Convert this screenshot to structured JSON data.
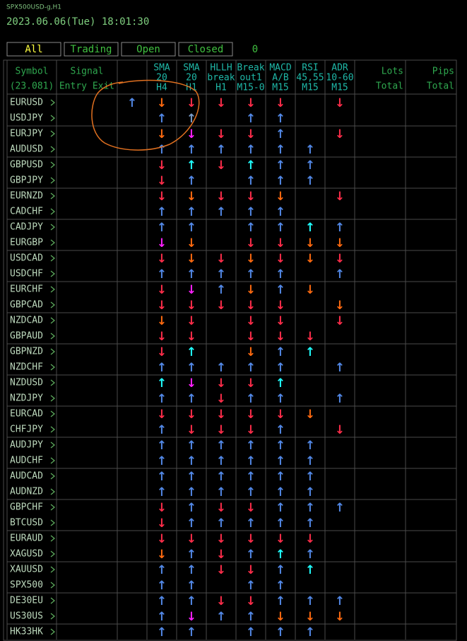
{
  "header": {
    "chart_name": "SPX500USD-g,H1",
    "datetime": "2023.06.06(Tue) 18:01:30"
  },
  "tabs": [
    "All",
    "Trading",
    "Open",
    "Closed"
  ],
  "count": 0,
  "columns": [
    [
      "Symbol",
      "(23.081)"
    ],
    [
      "Signal",
      "Entry Exit"
    ],
    [
      "SMA",
      "20",
      "H4"
    ],
    [
      "SMA",
      "20",
      "H1"
    ],
    [
      "HLLH",
      "break",
      "H1"
    ],
    [
      "Break",
      "out1",
      "M15-0"
    ],
    [
      "MACD",
      "A/B",
      "M15"
    ],
    [
      "RSI",
      "45,55",
      "M15"
    ],
    [
      "ADR",
      "10-60",
      "M15"
    ],
    [
      "Lots",
      "Total"
    ],
    [
      "Pips",
      "Total"
    ]
  ],
  "rows": [
    {
      "symbol": "EURUSD",
      "signals": [
        [
          "↑",
          "#5288e6"
        ],
        [
          "↓",
          "#ff6a10"
        ],
        [
          "↓",
          "#ff2d4a"
        ],
        [
          "↓",
          "#ff2d4a"
        ],
        [
          "↓",
          "#ff2d4a"
        ],
        [
          "↓",
          "#ff2d4a"
        ],
        null,
        [
          "↓",
          "#ff2d4a"
        ]
      ]
    },
    {
      "symbol": "USDJPY",
      "signals": [
        null,
        [
          "↑",
          "#5288e6"
        ],
        [
          "↑",
          "#7a9cc8"
        ],
        null,
        [
          "↑",
          "#5288e6"
        ],
        [
          "↑",
          "#5288e6"
        ],
        null,
        null
      ]
    },
    {
      "symbol": "EURJPY",
      "signals": [
        null,
        [
          "↓",
          "#ff6a10"
        ],
        [
          "↓",
          "#ff20ff"
        ],
        [
          "↓",
          "#ff2d4a"
        ],
        [
          "↓",
          "#ff2d4a"
        ],
        [
          "↑",
          "#5288e6"
        ],
        null,
        [
          "↓",
          "#ff2d4a"
        ]
      ]
    },
    {
      "symbol": "AUDUSD",
      "signals": [
        null,
        [
          "↑",
          "#5288e6"
        ],
        [
          "↑",
          "#5288e6"
        ],
        [
          "↑",
          "#5288e6"
        ],
        [
          "↑",
          "#5288e6"
        ],
        [
          "↑",
          "#5288e6"
        ],
        [
          "↑",
          "#5288e6"
        ],
        null
      ]
    },
    {
      "symbol": "GBPUSD",
      "signals": [
        null,
        [
          "↓",
          "#ff2d4a"
        ],
        [
          "↑",
          "#20ffff"
        ],
        [
          "↓",
          "#ff2d4a"
        ],
        [
          "↑",
          "#20ffff"
        ],
        [
          "↑",
          "#5288e6"
        ],
        [
          "↑",
          "#5288e6"
        ],
        null
      ]
    },
    {
      "symbol": "GBPJPY",
      "signals": [
        null,
        [
          "↓",
          "#ff2d4a"
        ],
        [
          "↑",
          "#5288e6"
        ],
        null,
        [
          "↑",
          "#5288e6"
        ],
        [
          "↑",
          "#5288e6"
        ],
        [
          "↑",
          "#5288e6"
        ],
        null
      ]
    },
    {
      "symbol": "EURNZD",
      "signals": [
        null,
        [
          "↓",
          "#ff2d4a"
        ],
        [
          "↓",
          "#ff6a10"
        ],
        [
          "↓",
          "#ff2d4a"
        ],
        [
          "↓",
          "#ff2d4a"
        ],
        [
          "↓",
          "#ff6a10"
        ],
        null,
        [
          "↓",
          "#ff2d4a"
        ]
      ]
    },
    {
      "symbol": "CADCHF",
      "signals": [
        null,
        [
          "↑",
          "#5288e6"
        ],
        [
          "↑",
          "#5288e6"
        ],
        [
          "↑",
          "#5288e6"
        ],
        [
          "↑",
          "#5288e6"
        ],
        [
          "↑",
          "#5288e6"
        ],
        null,
        null
      ]
    },
    {
      "symbol": "CADJPY",
      "signals": [
        null,
        [
          "↑",
          "#5288e6"
        ],
        [
          "↑",
          "#5288e6"
        ],
        null,
        [
          "↑",
          "#5288e6"
        ],
        [
          "↑",
          "#5288e6"
        ],
        [
          "↑",
          "#20ffff"
        ],
        [
          "↑",
          "#5288e6"
        ]
      ]
    },
    {
      "symbol": "EURGBP",
      "signals": [
        null,
        [
          "↓",
          "#ff20ff"
        ],
        [
          "↓",
          "#ff6a10"
        ],
        null,
        [
          "↓",
          "#ff2d4a"
        ],
        [
          "↓",
          "#ff2d4a"
        ],
        [
          "↓",
          "#ff6a10"
        ],
        [
          "↓",
          "#ff6a10"
        ]
      ]
    },
    {
      "symbol": "USDCAD",
      "signals": [
        null,
        [
          "↓",
          "#ff2d4a"
        ],
        [
          "↓",
          "#ff6a10"
        ],
        [
          "↓",
          "#ff2d4a"
        ],
        [
          "↓",
          "#ff6a10"
        ],
        [
          "↓",
          "#ff2d4a"
        ],
        [
          "↓",
          "#ff6a10"
        ],
        [
          "↓",
          "#ff2d4a"
        ]
      ]
    },
    {
      "symbol": "USDCHF",
      "signals": [
        null,
        [
          "↑",
          "#5288e6"
        ],
        [
          "↑",
          "#5288e6"
        ],
        [
          "↑",
          "#5288e6"
        ],
        [
          "↑",
          "#5288e6"
        ],
        [
          "↑",
          "#5288e6"
        ],
        null,
        [
          "↑",
          "#5288e6"
        ]
      ]
    },
    {
      "symbol": "EURCHF",
      "signals": [
        null,
        [
          "↓",
          "#ff2d4a"
        ],
        [
          "↓",
          "#ff20ff"
        ],
        [
          "↑",
          "#5288e6"
        ],
        [
          "↓",
          "#ff6a10"
        ],
        [
          "↑",
          "#5288e6"
        ],
        [
          "↓",
          "#ff6a10"
        ],
        null
      ]
    },
    {
      "symbol": "GBPCAD",
      "signals": [
        null,
        [
          "↓",
          "#ff2d4a"
        ],
        [
          "↓",
          "#ff2d4a"
        ],
        [
          "↓",
          "#ff2d4a"
        ],
        [
          "↓",
          "#ff2d4a"
        ],
        [
          "↓",
          "#ff2d4a"
        ],
        null,
        [
          "↓",
          "#ff6a10"
        ]
      ]
    },
    {
      "symbol": "NZDCAD",
      "signals": [
        null,
        [
          "↓",
          "#ff6a10"
        ],
        [
          "↓",
          "#ff2d4a"
        ],
        null,
        [
          "↓",
          "#ff2d4a"
        ],
        [
          "↓",
          "#ff2d4a"
        ],
        null,
        [
          "↓",
          "#ff2d4a"
        ]
      ]
    },
    {
      "symbol": "GBPAUD",
      "signals": [
        null,
        [
          "↓",
          "#ff2d4a"
        ],
        [
          "↓",
          "#ff2d4a"
        ],
        null,
        [
          "↓",
          "#ff2d4a"
        ],
        [
          "↓",
          "#ff2d4a"
        ],
        [
          "↓",
          "#ff2d4a"
        ],
        null
      ]
    },
    {
      "symbol": "GBPNZD",
      "signals": [
        null,
        [
          "↓",
          "#ff2d4a"
        ],
        [
          "↑",
          "#20ffff"
        ],
        null,
        [
          "↓",
          "#ff6a10"
        ],
        [
          "↑",
          "#5288e6"
        ],
        [
          "↑",
          "#20ffff"
        ],
        null
      ]
    },
    {
      "symbol": "NZDCHF",
      "signals": [
        null,
        [
          "↑",
          "#5288e6"
        ],
        [
          "↑",
          "#5288e6"
        ],
        [
          "↑",
          "#5288e6"
        ],
        [
          "↑",
          "#5288e6"
        ],
        [
          "↑",
          "#5288e6"
        ],
        null,
        [
          "↑",
          "#5288e6"
        ]
      ]
    },
    {
      "symbol": "NZDUSD",
      "signals": [
        null,
        [
          "↑",
          "#20ffff"
        ],
        [
          "↓",
          "#ff20ff"
        ],
        [
          "↓",
          "#ff2d4a"
        ],
        [
          "↓",
          "#ff2d4a"
        ],
        [
          "↑",
          "#20ffff"
        ],
        null,
        null
      ]
    },
    {
      "symbol": "NZDJPY",
      "signals": [
        null,
        [
          "↑",
          "#5288e6"
        ],
        [
          "↑",
          "#5288e6"
        ],
        [
          "↓",
          "#ff2d4a"
        ],
        [
          "↑",
          "#5288e6"
        ],
        [
          "↑",
          "#5288e6"
        ],
        null,
        [
          "↑",
          "#5288e6"
        ]
      ]
    },
    {
      "symbol": "EURCAD",
      "signals": [
        null,
        [
          "↓",
          "#ff2d4a"
        ],
        [
          "↓",
          "#ff2d4a"
        ],
        [
          "↓",
          "#ff2d4a"
        ],
        [
          "↓",
          "#ff2d4a"
        ],
        [
          "↓",
          "#ff2d4a"
        ],
        [
          "↓",
          "#ff6a10"
        ],
        null
      ]
    },
    {
      "symbol": "CHFJPY",
      "signals": [
        null,
        [
          "↑",
          "#5288e6"
        ],
        [
          "↓",
          "#ff2d4a"
        ],
        [
          "↓",
          "#ff2d4a"
        ],
        [
          "↓",
          "#ff2d4a"
        ],
        [
          "↑",
          "#5288e6"
        ],
        null,
        [
          "↓",
          "#ff2d4a"
        ]
      ]
    },
    {
      "symbol": "AUDJPY",
      "signals": [
        null,
        [
          "↑",
          "#5288e6"
        ],
        [
          "↑",
          "#5288e6"
        ],
        [
          "↑",
          "#5288e6"
        ],
        [
          "↑",
          "#5288e6"
        ],
        [
          "↑",
          "#5288e6"
        ],
        [
          "↑",
          "#5288e6"
        ],
        null
      ]
    },
    {
      "symbol": "AUDCHF",
      "signals": [
        null,
        [
          "↑",
          "#5288e6"
        ],
        [
          "↑",
          "#5288e6"
        ],
        [
          "↑",
          "#5288e6"
        ],
        [
          "↑",
          "#5288e6"
        ],
        [
          "↑",
          "#5288e6"
        ],
        [
          "↑",
          "#5288e6"
        ],
        null
      ]
    },
    {
      "symbol": "AUDCAD",
      "signals": [
        null,
        [
          "↑",
          "#5288e6"
        ],
        [
          "↑",
          "#5288e6"
        ],
        [
          "↑",
          "#5288e6"
        ],
        [
          "↑",
          "#5288e6"
        ],
        [
          "↑",
          "#5288e6"
        ],
        [
          "↑",
          "#5288e6"
        ],
        null
      ]
    },
    {
      "symbol": "AUDNZD",
      "signals": [
        null,
        [
          "↑",
          "#5288e6"
        ],
        [
          "↑",
          "#5288e6"
        ],
        [
          "↑",
          "#5288e6"
        ],
        [
          "↑",
          "#5288e6"
        ],
        [
          "↑",
          "#5288e6"
        ],
        [
          "↑",
          "#5288e6"
        ],
        null
      ]
    },
    {
      "symbol": "GBPCHF",
      "signals": [
        null,
        [
          "↓",
          "#ff2d4a"
        ],
        [
          "↑",
          "#5288e6"
        ],
        [
          "↓",
          "#ff2d4a"
        ],
        [
          "↓",
          "#ff2d4a"
        ],
        [
          "↑",
          "#5288e6"
        ],
        [
          "↑",
          "#5288e6"
        ],
        [
          "↑",
          "#5288e6"
        ]
      ]
    },
    {
      "symbol": "BTCUSD",
      "signals": [
        null,
        [
          "↓",
          "#ff2d4a"
        ],
        [
          "↑",
          "#5288e6"
        ],
        [
          "↑",
          "#5288e6"
        ],
        [
          "↑",
          "#5288e6"
        ],
        [
          "↑",
          "#5288e6"
        ],
        [
          "↑",
          "#5288e6"
        ],
        null
      ]
    },
    {
      "symbol": "EURAUD",
      "signals": [
        null,
        [
          "↓",
          "#ff2d4a"
        ],
        [
          "↓",
          "#ff2d4a"
        ],
        [
          "↓",
          "#ff2d4a"
        ],
        [
          "↓",
          "#ff2d4a"
        ],
        [
          "↓",
          "#ff2d4a"
        ],
        [
          "↓",
          "#ff2d4a"
        ],
        null
      ]
    },
    {
      "symbol": "XAGUSD",
      "signals": [
        null,
        [
          "↓",
          "#ff6a10"
        ],
        [
          "↑",
          "#5288e6"
        ],
        [
          "↓",
          "#ff2d4a"
        ],
        [
          "↑",
          "#5288e6"
        ],
        [
          "↑",
          "#20ffff"
        ],
        [
          "↑",
          "#5288e6"
        ],
        null
      ]
    },
    {
      "symbol": "XAUUSD",
      "signals": [
        null,
        [
          "↑",
          "#5288e6"
        ],
        [
          "↑",
          "#5288e6"
        ],
        [
          "↓",
          "#ff2d4a"
        ],
        [
          "↓",
          "#ff2d4a"
        ],
        [
          "↑",
          "#5288e6"
        ],
        [
          "↑",
          "#20ffff"
        ],
        null
      ]
    },
    {
      "symbol": "SPX500",
      "signals": [
        null,
        [
          "↑",
          "#5288e6"
        ],
        [
          "↑",
          "#5288e6"
        ],
        null,
        [
          "↑",
          "#5288e6"
        ],
        [
          "↑",
          "#5288e6"
        ],
        null,
        null
      ]
    },
    {
      "symbol": "DE30EU",
      "signals": [
        null,
        [
          "↑",
          "#5288e6"
        ],
        [
          "↑",
          "#5288e6"
        ],
        [
          "↓",
          "#ff2d4a"
        ],
        [
          "↓",
          "#ff2d4a"
        ],
        [
          "↑",
          "#5288e6"
        ],
        [
          "↑",
          "#5288e6"
        ],
        [
          "↑",
          "#5288e6"
        ]
      ]
    },
    {
      "symbol": "US30US",
      "signals": [
        null,
        [
          "↑",
          "#5288e6"
        ],
        [
          "↓",
          "#ff20ff"
        ],
        [
          "↑",
          "#5288e6"
        ],
        [
          "↑",
          "#5288e6"
        ],
        [
          "↓",
          "#ff6a10"
        ],
        [
          "↓",
          "#ff6a10"
        ],
        [
          "↓",
          "#ff6a10"
        ]
      ]
    },
    {
      "symbol": "HK33HK",
      "signals": [
        null,
        [
          "↑",
          "#5288e6"
        ],
        [
          "↑",
          "#5288e6"
        ],
        null,
        [
          "↑",
          "#5288e6"
        ],
        [
          "↑",
          "#5288e6"
        ],
        [
          "↑",
          "#5288e6"
        ],
        null
      ]
    }
  ]
}
